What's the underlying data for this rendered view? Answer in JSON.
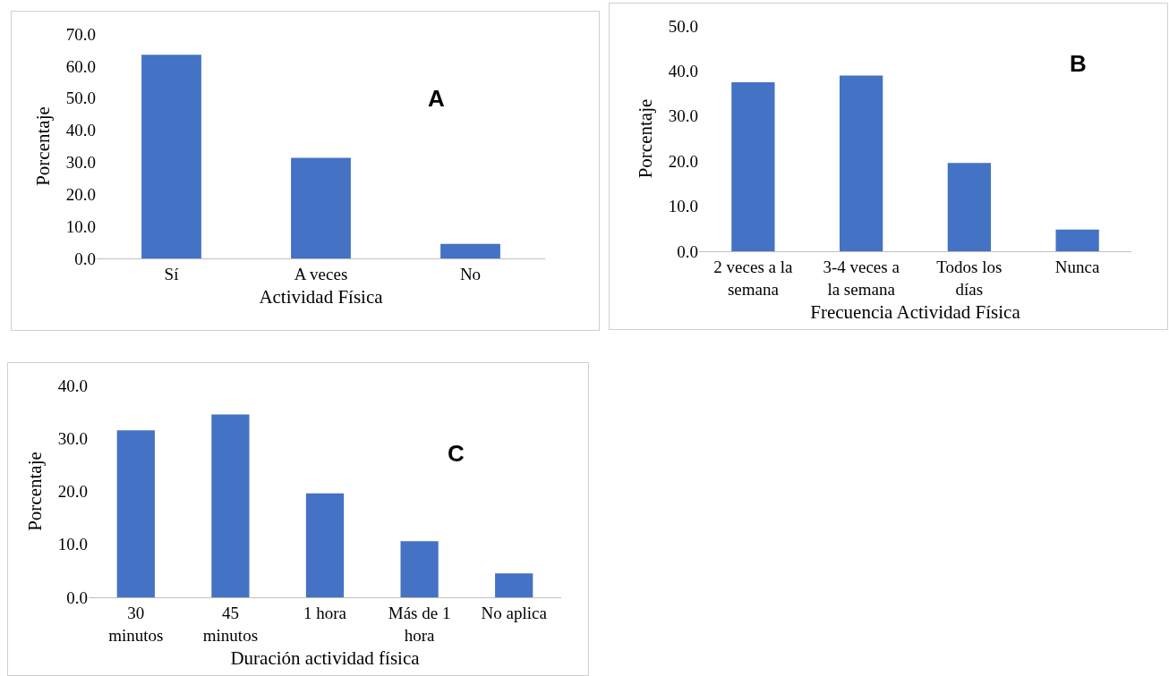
{
  "chart_data": [
    {
      "type": "bar",
      "categories": [
        "Sí",
        "A veces",
        "No"
      ],
      "values": [
        63.5,
        31.4,
        4.5
      ],
      "color": "#4472c4",
      "xlabel": "Actividad Física",
      "ylabel": "Porcentaje",
      "annotations": [
        "A"
      ],
      "ylim": [
        0,
        70
      ],
      "yticks": [
        {
          "value": 0,
          "label": "0.0"
        },
        {
          "value": 10,
          "label": "10.0"
        },
        {
          "value": 20,
          "label": "20.0"
        },
        {
          "value": 30,
          "label": "30.0"
        },
        {
          "value": 40,
          "label": "40.0"
        },
        {
          "value": 50,
          "label": "50.0"
        },
        {
          "value": 60,
          "label": "60.0"
        },
        {
          "value": 70,
          "label": "70.0"
        }
      ],
      "grid": false
    },
    {
      "type": "bar",
      "categories": [
        "2 veces a la semana",
        "3-4 veces a la semana",
        "Todos los días",
        "Nunca"
      ],
      "values": [
        37.5,
        39.0,
        19.6,
        4.8
      ],
      "color": "#4472c4",
      "xlabel": "Frecuencia Actividad Física",
      "ylabel": "Porcentaje",
      "annotations": [
        "B"
      ],
      "ylim": [
        0,
        50
      ],
      "yticks": [
        {
          "value": 0,
          "label": "0.0"
        },
        {
          "value": 10,
          "label": "10.0"
        },
        {
          "value": 20,
          "label": "20.0"
        },
        {
          "value": 30,
          "label": "30.0"
        },
        {
          "value": 40,
          "label": "40.0"
        },
        {
          "value": 50,
          "label": "50.0"
        }
      ],
      "grid": false
    },
    {
      "type": "bar",
      "categories": [
        "30 minutos",
        "45 minutos",
        "1 hora",
        "Más de 1 hora",
        "No aplica"
      ],
      "values": [
        31.5,
        34.5,
        19.6,
        10.6,
        4.5
      ],
      "color": "#4472c4",
      "xlabel": "Duración actividad física",
      "ylabel": "Porcentaje",
      "annotations": [
        "C"
      ],
      "ylim": [
        0,
        40
      ],
      "yticks": [
        {
          "value": 0,
          "label": "0.0"
        },
        {
          "value": 10,
          "label": "10.0"
        },
        {
          "value": 20,
          "label": "20.0"
        },
        {
          "value": 30,
          "label": "30.0"
        },
        {
          "value": 40,
          "label": "40.0"
        }
      ],
      "grid": false
    }
  ]
}
